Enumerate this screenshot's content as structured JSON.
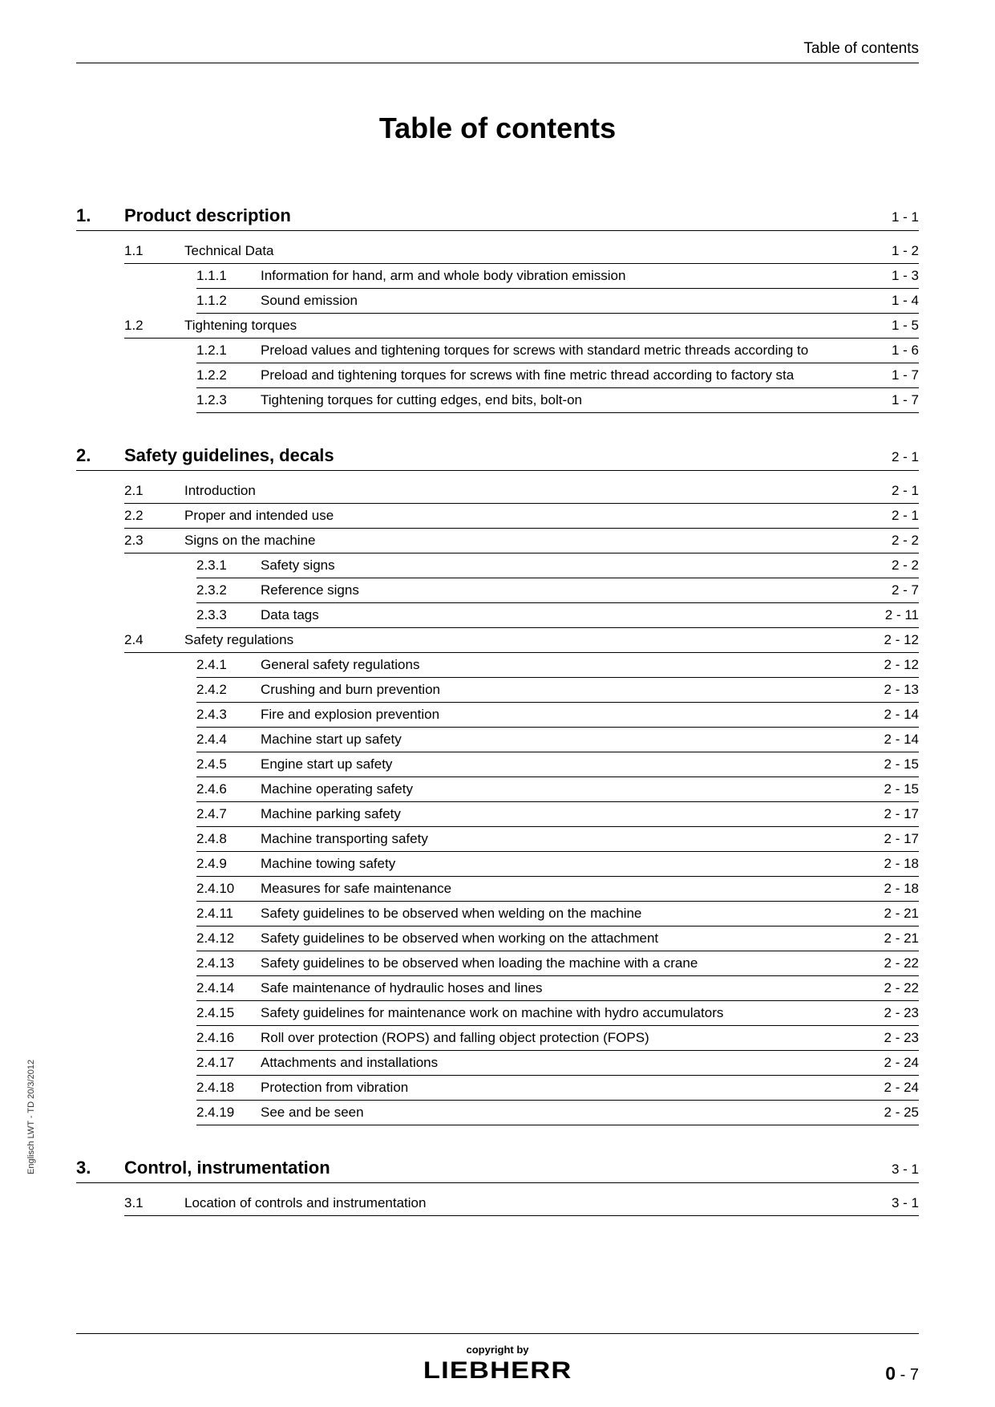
{
  "header": {
    "right": "Table of contents"
  },
  "title": "Table of contents",
  "side_text": "Englisch  LWT - TD 20/3/2012",
  "chapters": [
    {
      "num": "1.",
      "title": "Product description",
      "page": "1 - 1",
      "sections": [
        {
          "num": "1.1",
          "title": "Technical Data",
          "page": "1 - 2",
          "subs": [
            {
              "num": "1.1.1",
              "title": "Information for hand, arm and whole body vibration emission",
              "page": "1 - 3"
            },
            {
              "num": "1.1.2",
              "title": "Sound emission",
              "page": "1 - 4"
            }
          ]
        },
        {
          "num": "1.2",
          "title": "Tightening torques",
          "page": "1 - 5",
          "subs": [
            {
              "num": "1.2.1",
              "title": "Preload values and tightening torques for screws with standard metric threads according to",
              "page": "1 - 6"
            },
            {
              "num": "1.2.2",
              "title": "Preload and tightening torques for screws with fine metric thread according to factory sta",
              "page": "1 - 7"
            },
            {
              "num": "1.2.3",
              "title": "Tightening torques for cutting edges, end bits, bolt-on",
              "page": "1 - 7"
            }
          ]
        }
      ]
    },
    {
      "num": "2.",
      "title": "Safety guidelines, decals",
      "page": "2 - 1",
      "sections": [
        {
          "num": "2.1",
          "title": "Introduction",
          "page": "2 - 1",
          "subs": []
        },
        {
          "num": "2.2",
          "title": "Proper and intended use",
          "page": "2 - 1",
          "subs": []
        },
        {
          "num": "2.3",
          "title": "Signs on the machine",
          "page": "2 - 2",
          "subs": [
            {
              "num": "2.3.1",
              "title": "Safety signs",
              "page": "2 - 2"
            },
            {
              "num": "2.3.2",
              "title": "Reference signs",
              "page": "2 - 7"
            },
            {
              "num": "2.3.3",
              "title": "Data tags",
              "page": "2 - 11"
            }
          ]
        },
        {
          "num": "2.4",
          "title": "Safety regulations",
          "page": "2 - 12",
          "subs": [
            {
              "num": "2.4.1",
              "title": "General safety regulations",
              "page": "2 - 12"
            },
            {
              "num": "2.4.2",
              "title": "Crushing and burn prevention",
              "page": "2 - 13"
            },
            {
              "num": "2.4.3",
              "title": "Fire and explosion prevention",
              "page": "2 - 14"
            },
            {
              "num": "2.4.4",
              "title": "Machine start up safety",
              "page": "2 - 14"
            },
            {
              "num": "2.4.5",
              "title": "Engine start up safety",
              "page": "2 - 15"
            },
            {
              "num": "2.4.6",
              "title": "Machine operating safety",
              "page": "2 - 15"
            },
            {
              "num": "2.4.7",
              "title": "Machine parking safety",
              "page": "2 - 17"
            },
            {
              "num": "2.4.8",
              "title": "Machine transporting safety",
              "page": "2 - 17"
            },
            {
              "num": "2.4.9",
              "title": "Machine towing safety",
              "page": "2 - 18"
            },
            {
              "num": "2.4.10",
              "title": "Measures for safe maintenance",
              "page": "2 - 18"
            },
            {
              "num": "2.4.11",
              "title": "Safety guidelines to be observed when welding on the machine",
              "page": "2 - 21"
            },
            {
              "num": "2.4.12",
              "title": "Safety guidelines to be observed when working on the attachment",
              "page": "2 - 21"
            },
            {
              "num": "2.4.13",
              "title": "Safety guidelines to be observed when loading the machine with a crane",
              "page": "2 - 22"
            },
            {
              "num": "2.4.14",
              "title": "Safe maintenance of hydraulic hoses and lines",
              "page": "2 - 22"
            },
            {
              "num": "2.4.15",
              "title": "Safety guidelines for maintenance work on machine with hydro accumulators",
              "page": "2 - 23"
            },
            {
              "num": "2.4.16",
              "title": "Roll over protection (ROPS) and falling object protection (FOPS)",
              "page": "2 - 23"
            },
            {
              "num": "2.4.17",
              "title": "Attachments and installations",
              "page": "2 - 24"
            },
            {
              "num": "2.4.18",
              "title": "Protection from vibration",
              "page": "2 - 24"
            },
            {
              "num": "2.4.19",
              "title": "See and be seen",
              "page": "2 - 25"
            }
          ]
        }
      ]
    },
    {
      "num": "3.",
      "title": "Control, instrumentation",
      "page": "3 - 1",
      "sections": [
        {
          "num": "3.1",
          "title": "Location of controls and instrumentation",
          "page": "3 - 1",
          "subs": []
        }
      ]
    }
  ],
  "footer": {
    "copyright": "copyright by",
    "brand": "LIEBHERR",
    "page_prefix": "0",
    "page_sep": " - ",
    "page_num": "7"
  }
}
